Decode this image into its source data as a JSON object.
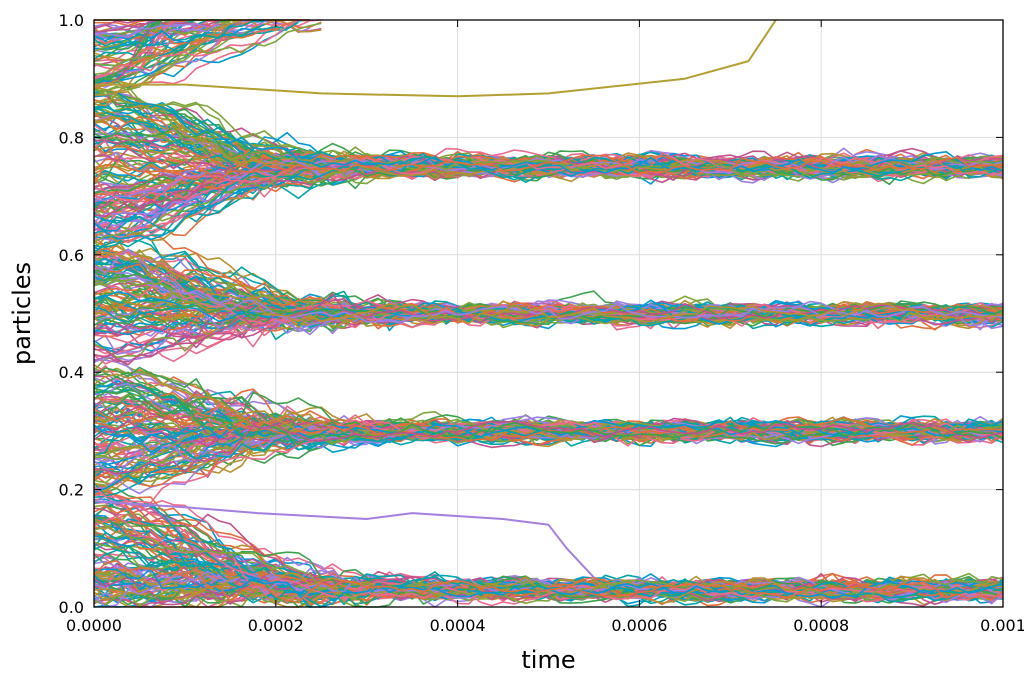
{
  "chart_data": {
    "type": "line",
    "title": "",
    "xlabel": "time",
    "ylabel": "particles",
    "xlim": [
      0,
      0.001
    ],
    "ylim": [
      0,
      1.0
    ],
    "x_ticks": [
      "0.0000",
      "0.0002",
      "0.0004",
      "0.0006",
      "0.0008",
      "0.001"
    ],
    "y_ticks": [
      "0.0",
      "0.2",
      "0.4",
      "0.6",
      "0.8",
      "1.0"
    ],
    "x_tick_values": [
      0,
      0.0002,
      0.0004,
      0.0006,
      0.0008,
      0.001
    ],
    "y_tick_values": [
      0,
      0.2,
      0.4,
      0.6,
      0.8,
      1.0
    ],
    "grid": true,
    "legend": "none",
    "cluster_levels": [
      0.03,
      0.3,
      0.5,
      0.75
    ],
    "cluster_merge_time": 0.0003,
    "notable_trajectories": [
      {
        "x": [
          0,
          0.0001,
          0.00025,
          0.0004,
          0.0005,
          0.00065,
          0.00072,
          0.00075
        ],
        "y": [
          0.89,
          0.89,
          0.875,
          0.87,
          0.875,
          0.9,
          0.93,
          1.0
        ],
        "color": "#b3a032"
      },
      {
        "x": [
          0,
          0.0001,
          0.00018,
          0.0003,
          0.00035,
          0.00045,
          0.0005,
          0.00052,
          0.00055
        ],
        "y": [
          0.18,
          0.17,
          0.16,
          0.15,
          0.16,
          0.15,
          0.14,
          0.1,
          0.05
        ],
        "color": "#a47fe0"
      }
    ],
    "series_palette": [
      "#009ad3",
      "#e26e3c",
      "#3ca24d",
      "#c2518d",
      "#9c7fe6",
      "#b7912f",
      "#00a5aa",
      "#ec6a8c",
      "#7fa53a"
    ]
  }
}
